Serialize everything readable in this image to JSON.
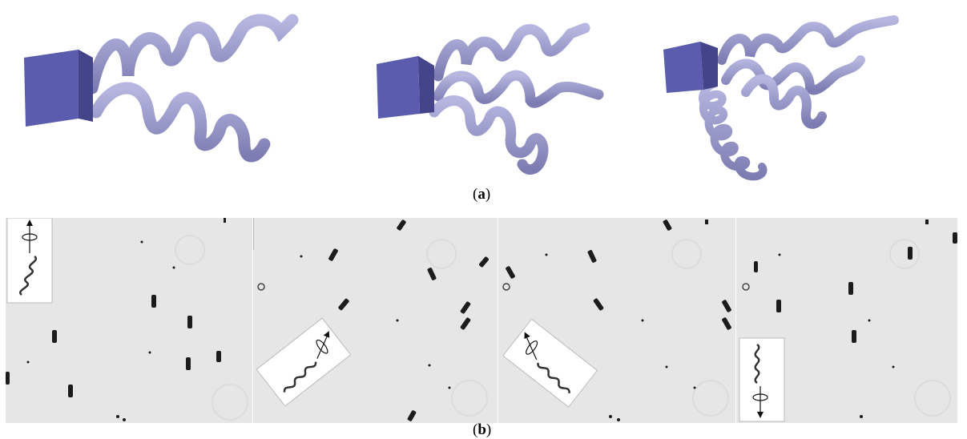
{
  "figure": {
    "panel_a_label": "a",
    "panel_b_label": "b"
  },
  "colors": {
    "cube_front": "#5c5cae",
    "cube_top": "#8585d6",
    "cube_side": "#44448a",
    "helix": "#9898c8",
    "helix_dark": "#6e6ea4",
    "micrograph_bg": "#e6e6e6",
    "cell": "#1c1c1c"
  },
  "panels_b": [
    {
      "name": "frame-1",
      "inset": "helix-arrow-up"
    },
    {
      "name": "frame-2",
      "inset": "helix-arrow-upright"
    },
    {
      "name": "frame-3",
      "inset": "helix-arrow-upleft"
    },
    {
      "name": "frame-4",
      "inset": "helix-arrow-down"
    }
  ]
}
